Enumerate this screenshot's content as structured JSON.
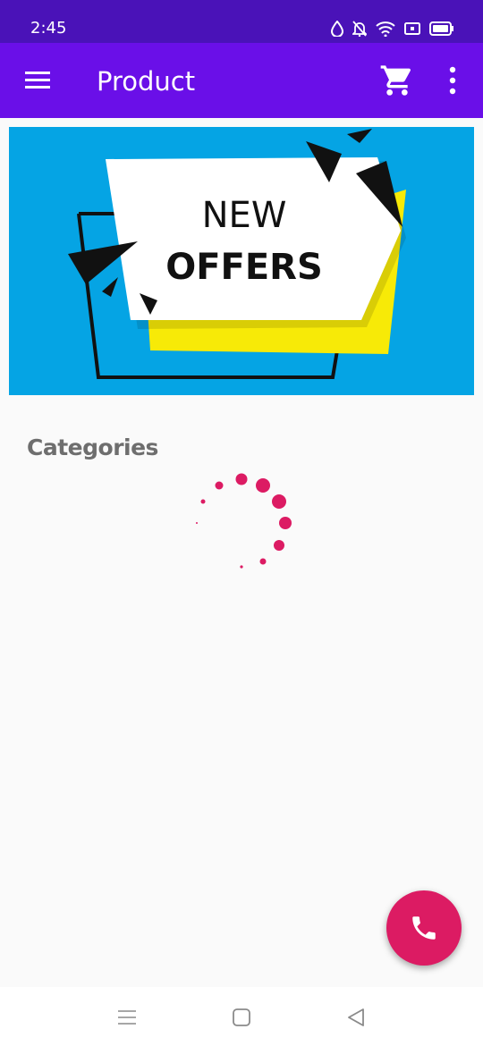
{
  "status_bar": {
    "time": "2:45",
    "icons": [
      "data-saver-icon",
      "notifications-off-icon",
      "wifi-icon",
      "screen-cast-icon",
      "battery-icon"
    ]
  },
  "app_bar": {
    "title": "Product",
    "menu_icon": "hamburger-menu-icon",
    "cart_icon": "shopping-cart-icon",
    "more_icon": "more-vertical-icon"
  },
  "banner": {
    "line1": "NEW",
    "line2": "OFFERS",
    "background_color": "#05a4e4"
  },
  "main": {
    "section_title": "Categories",
    "loading": true
  },
  "fab": {
    "icon": "phone-icon",
    "color": "#dc1b63"
  },
  "nav_bar": {
    "buttons": [
      "recents-icon",
      "home-icon",
      "back-icon"
    ]
  },
  "colors": {
    "status_bar": "#4a12b8",
    "app_bar": "#6a0fe8",
    "accent": "#dc1b63"
  }
}
